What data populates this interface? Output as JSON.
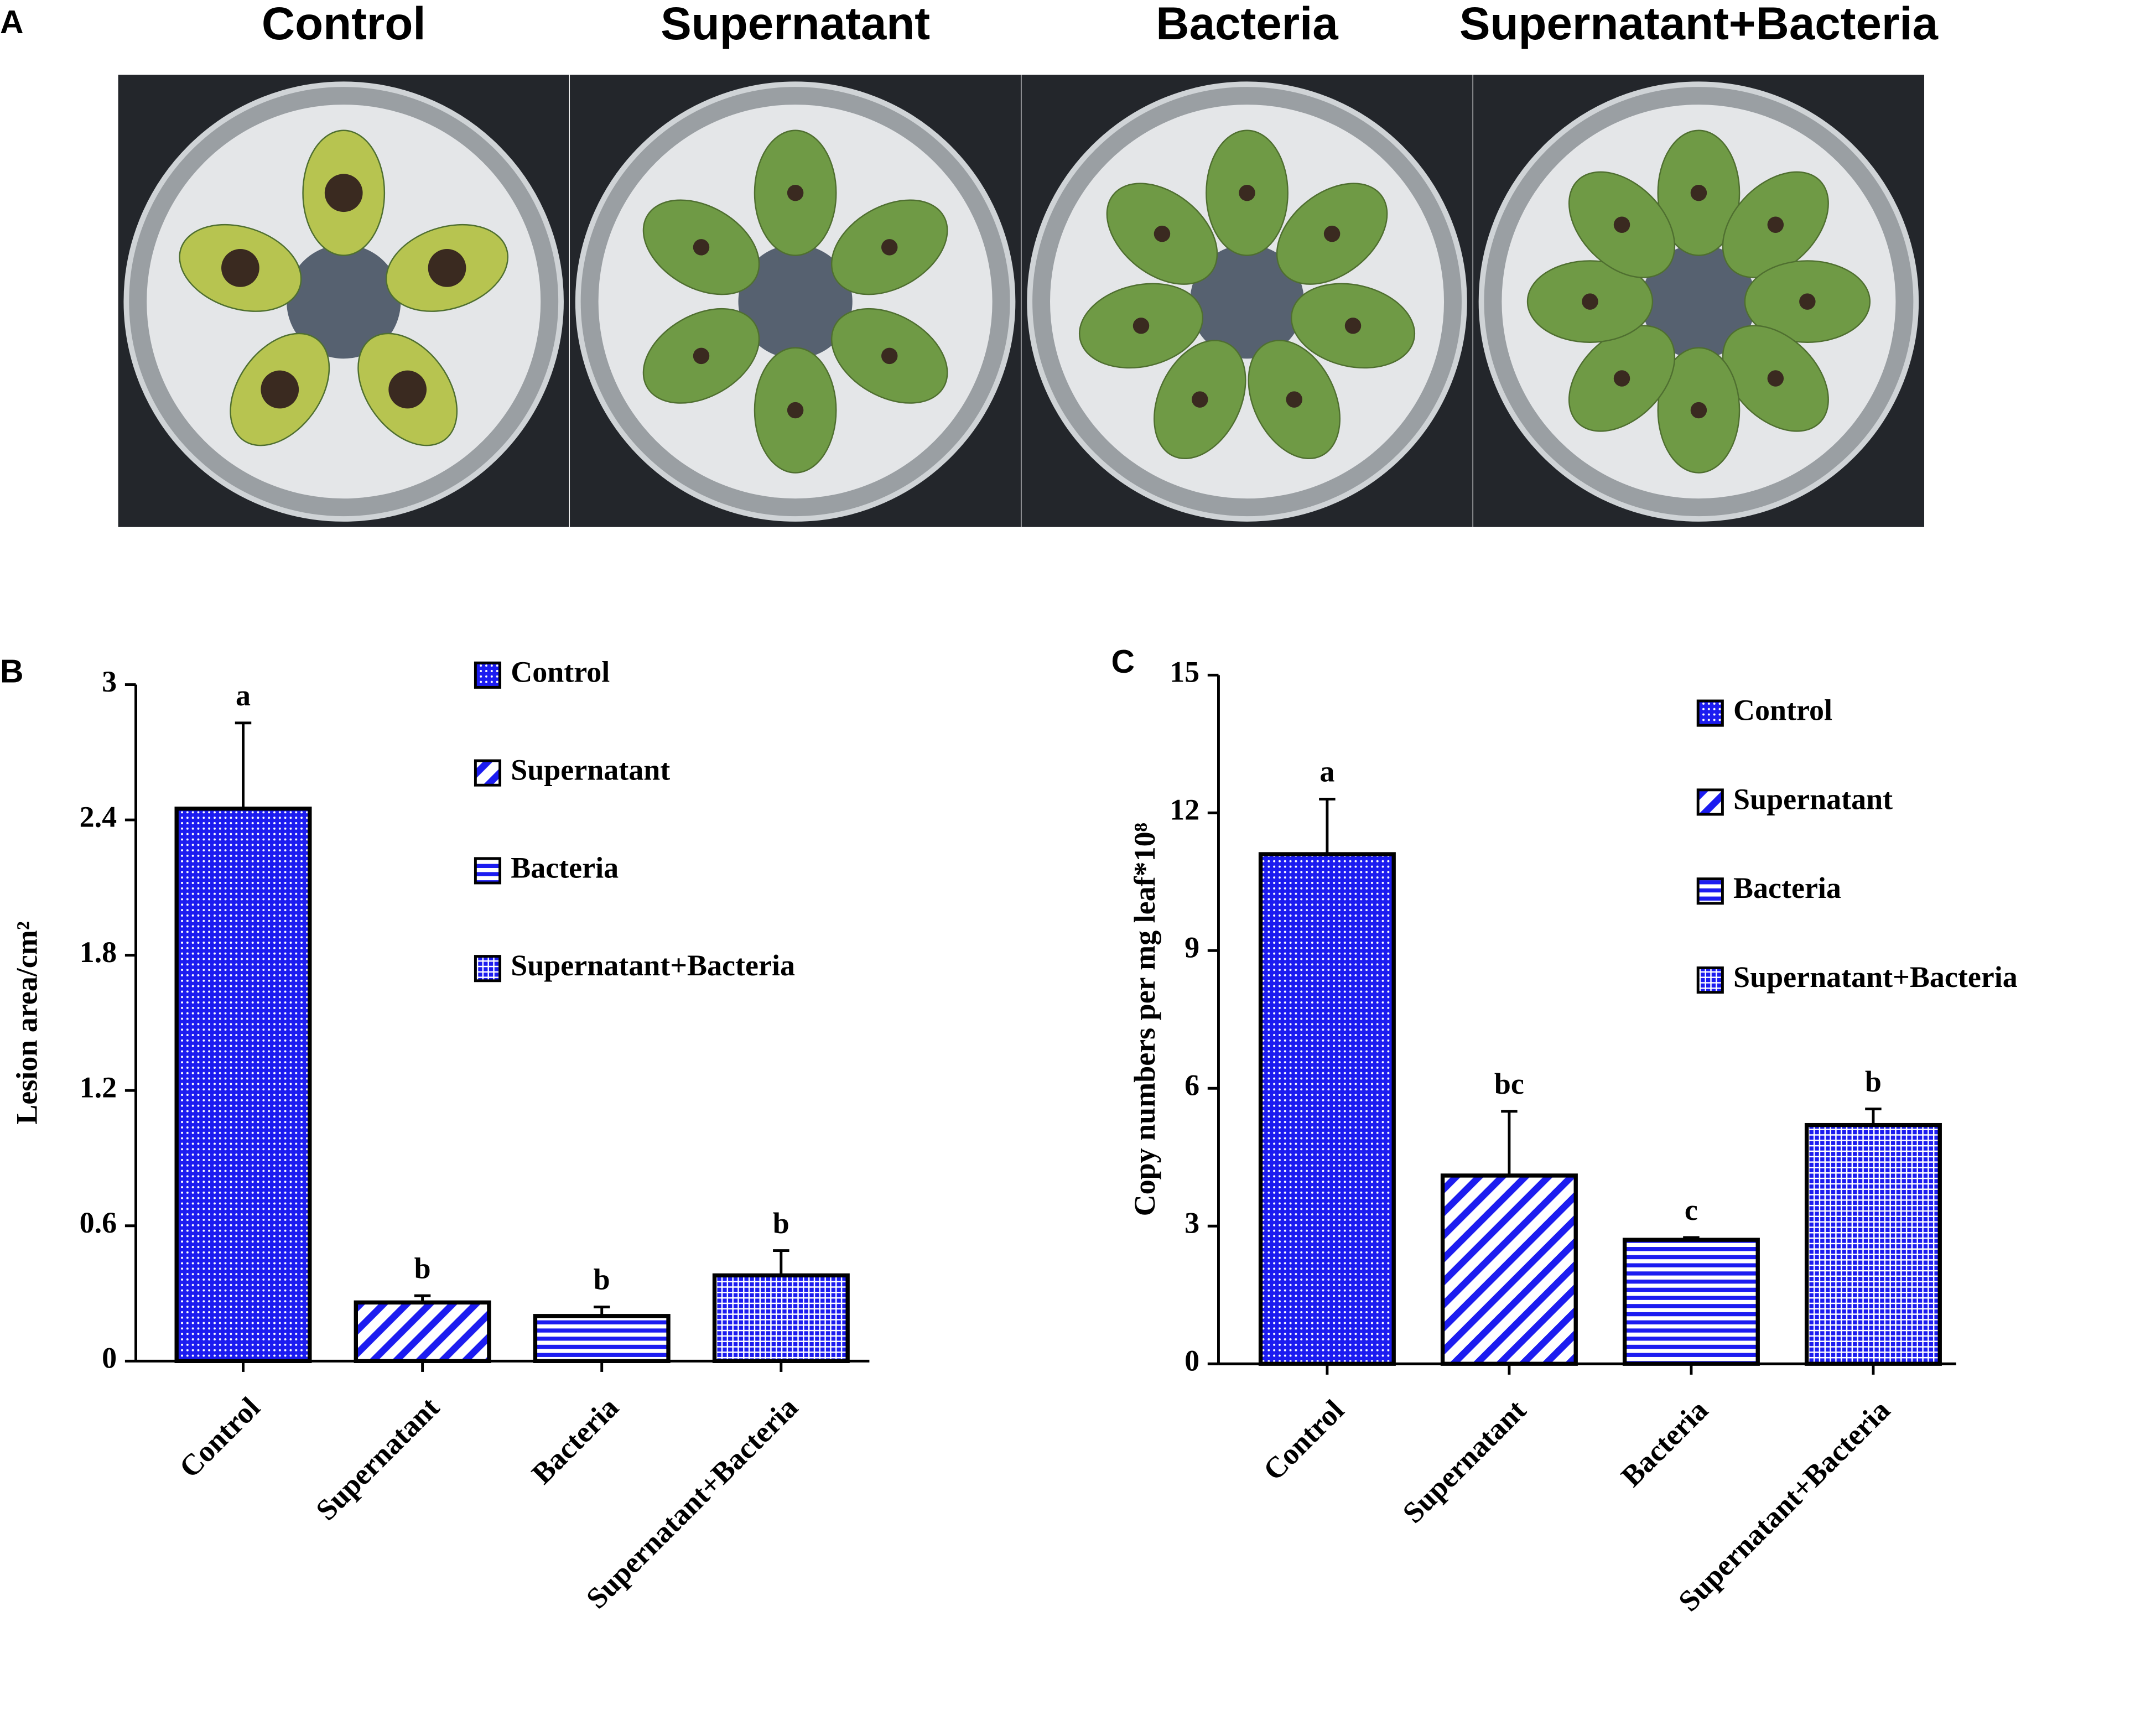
{
  "panel_a": {
    "label": "A",
    "titles": [
      "Control",
      "Supernatant",
      "Bacteria",
      "Supernatant+Bacteria"
    ]
  },
  "chart_data": [
    {
      "type": "bar",
      "panel_label": "B",
      "ylabel": "Lesion area/cm²",
      "categories": [
        "Control",
        "Supernatant",
        "Bacteria",
        "Supernatant+Bacteria"
      ],
      "values": [
        2.45,
        0.26,
        0.2,
        0.38
      ],
      "errors": [
        0.38,
        0.03,
        0.04,
        0.11
      ],
      "annotations": [
        "a",
        "b",
        "b",
        "b"
      ],
      "patterns": [
        "dots",
        "diagonal",
        "horizontal",
        "grid"
      ],
      "color": "#1c1cf0",
      "ylim": [
        0,
        3
      ],
      "yticks": [
        0,
        0.6,
        1.2,
        1.8,
        2.4,
        3
      ]
    },
    {
      "type": "bar",
      "panel_label": "C",
      "ylabel": "Copy numbers per mg leaf*10⁸",
      "categories": [
        "Control",
        "Supernatant",
        "Bacteria",
        "Supernatant+Bacteria"
      ],
      "values": [
        11.1,
        4.1,
        2.7,
        5.2
      ],
      "errors": [
        1.2,
        1.4,
        0.05,
        0.35
      ],
      "annotations": [
        "a",
        "bc",
        "c",
        "b"
      ],
      "patterns": [
        "dots",
        "diagonal",
        "horizontal",
        "grid"
      ],
      "color": "#1c1cf0",
      "ylim": [
        0,
        15
      ],
      "yticks": [
        0,
        3,
        6,
        9,
        12,
        15
      ]
    }
  ]
}
